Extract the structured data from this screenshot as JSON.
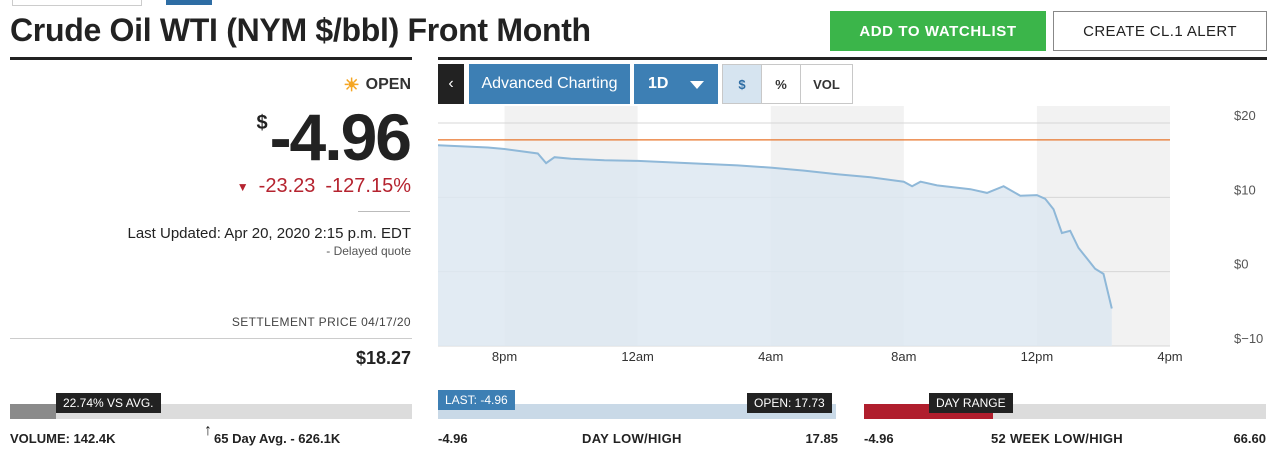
{
  "header": {
    "title": "Crude Oil WTI (NYM $/bbl) Front Month",
    "watchlist_label": "ADD TO WATCHLIST",
    "alert_label": "CREATE CL.1 ALERT"
  },
  "quote": {
    "status": "OPEN",
    "currency": "$",
    "price": "-4.96",
    "change": "-23.23",
    "change_pct": "-127.15%",
    "last_updated": "Last Updated: Apr 20, 2020 2:15 p.m. EDT",
    "delayed": "-  Delayed quote",
    "settlement_label": "SETTLEMENT PRICE 04/17/20",
    "settlement_value": "$18.27",
    "down_color": "#b5232f",
    "icons": {
      "status": "sun-icon",
      "change": "triangle-down-icon",
      "back": "chevron-left-icon",
      "interval": "caret-down-icon",
      "avg": "arrow-up-icon"
    }
  },
  "toolbar": {
    "back": "‹",
    "advanced": "Advanced Charting",
    "interval": "1D",
    "usd": "$",
    "pct": "%",
    "vol": "VOL"
  },
  "chart_data": {
    "type": "area",
    "x": [
      "6pm",
      "6:30pm",
      "7pm",
      "7:30pm",
      "8pm",
      "8:30pm",
      "9pm",
      "9:15pm",
      "9:30pm",
      "10pm",
      "11pm",
      "12am",
      "1am",
      "2am",
      "3am",
      "4am",
      "5am",
      "6am",
      "7am",
      "8am",
      "8:15am",
      "8:30am",
      "9am",
      "10am",
      "10:30am",
      "11am",
      "11:30am",
      "12pm",
      "12:15pm",
      "12:30pm",
      "12:45pm",
      "1pm",
      "1:15pm",
      "1:30pm",
      "1:45pm",
      "2pm",
      "2:15pm"
    ],
    "y": [
      17.0,
      16.9,
      16.8,
      16.7,
      16.5,
      16.2,
      15.9,
      14.6,
      15.4,
      15.2,
      15.0,
      14.9,
      14.7,
      14.5,
      14.3,
      14.0,
      13.6,
      13.1,
      12.7,
      12.1,
      11.5,
      12.1,
      11.6,
      11.1,
      10.6,
      11.5,
      10.2,
      10.3,
      9.8,
      8.4,
      5.2,
      5.5,
      3.2,
      1.8,
      0.4,
      -0.3,
      -4.96
    ],
    "x_ticks": [
      "8pm",
      "12am",
      "4am",
      "8am",
      "12pm",
      "4pm"
    ],
    "y_ticks": [
      "$20",
      "$10",
      "$0",
      "$−10"
    ],
    "ylim": [
      -10,
      20
    ],
    "reference_line": 17.73,
    "line_color": "#8fb8d8",
    "fill_color": "#dde8f1",
    "ref_color": "#e8742a",
    "grid": true
  },
  "volume": {
    "tag": "22.74% VS AVG.",
    "label": "VOLUME: 142.4K",
    "avg_label": "65 Day Avg. - 626.1K",
    "arrow": "↑",
    "fill_fraction": 0.1137
  },
  "day": {
    "last_tag": "LAST: -4.96",
    "open_tag": "OPEN: 17.73",
    "low": "-4.96",
    "title": "DAY LOW/HIGH",
    "high": "17.85"
  },
  "week52": {
    "tag": "DAY RANGE",
    "low": "-4.96",
    "title": "52 WEEK LOW/HIGH",
    "high": "66.60",
    "fill_fraction": 0.32
  }
}
